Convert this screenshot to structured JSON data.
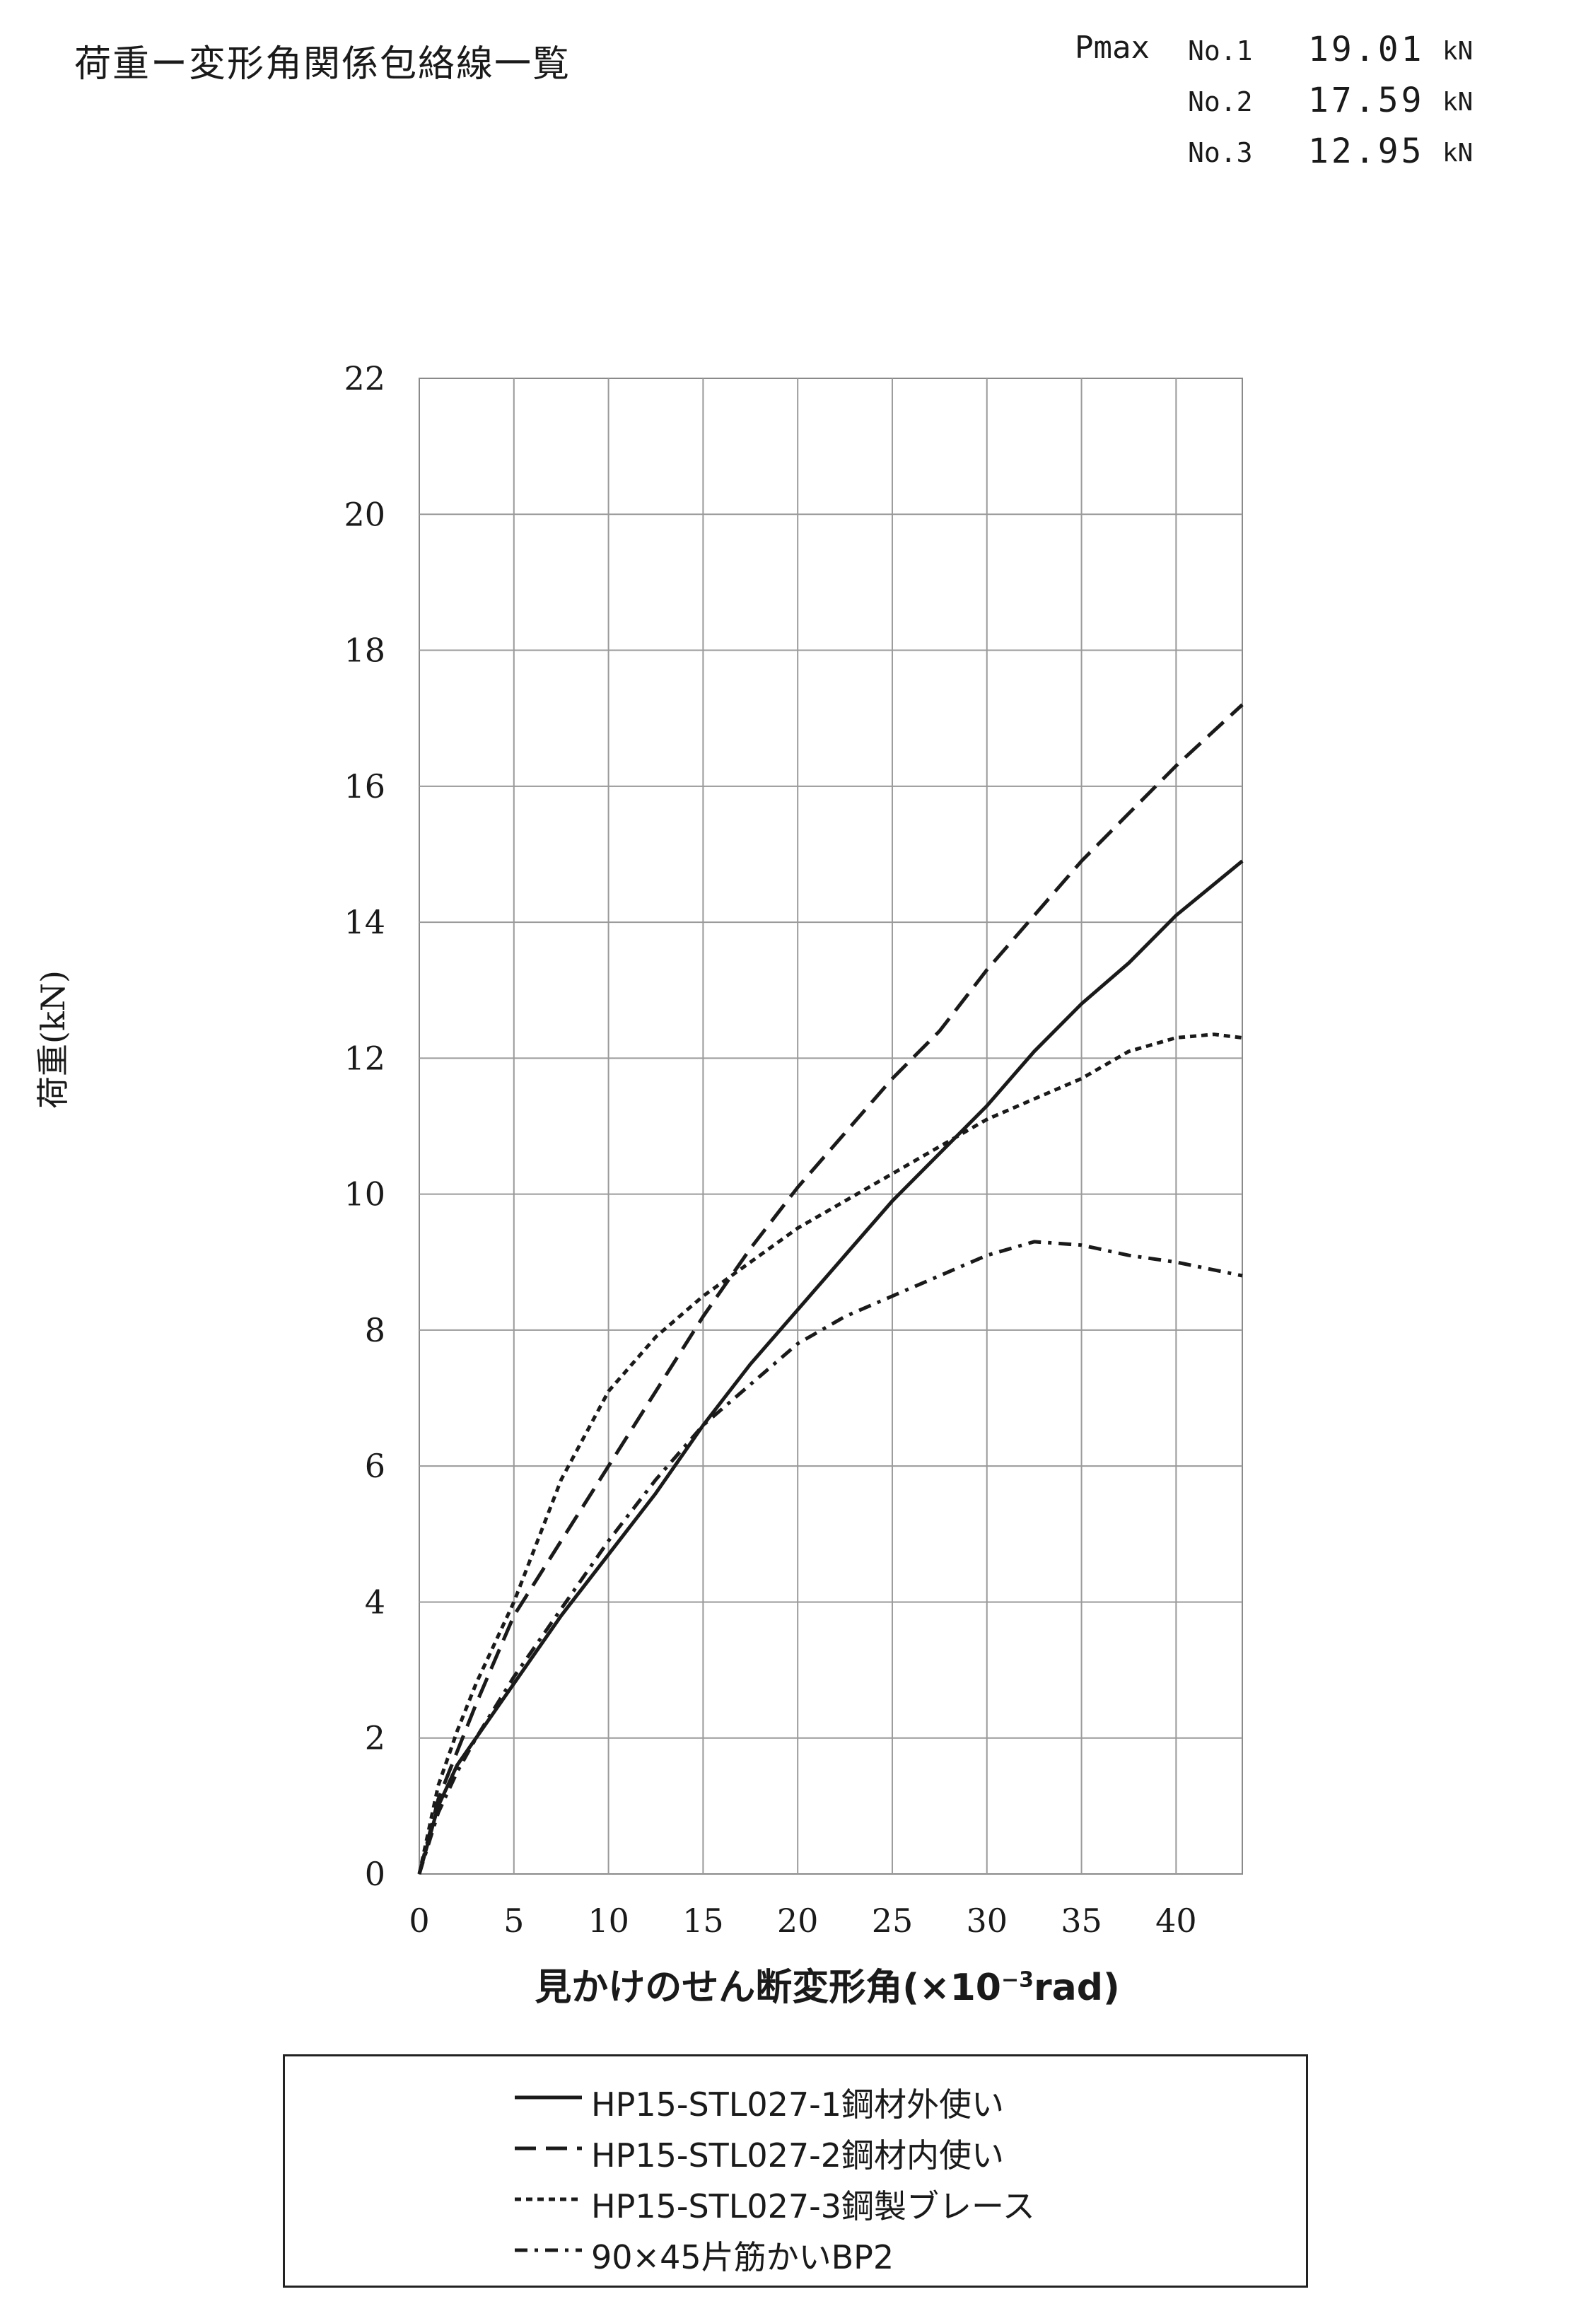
{
  "page": {
    "title": "荷重ー変形角関係包絡線一覧"
  },
  "pmax": {
    "label": "Pmax",
    "rows": [
      {
        "no": "No.1",
        "value": "19.01",
        "unit": "kN"
      },
      {
        "no": "No.2",
        "value": "17.59",
        "unit": "kN"
      },
      {
        "no": "No.3",
        "value": "12.95",
        "unit": "kN"
      }
    ]
  },
  "chart_data": {
    "type": "line",
    "ylabel": "荷重(kN)",
    "xlabel_main": "見かけのせん断変形角(×10",
    "xlabel_sup": "−3",
    "xlabel_tail": "rad)",
    "xlim": [
      0,
      43.5
    ],
    "ylim": [
      0,
      22
    ],
    "xticks": [
      0,
      5,
      10,
      15,
      20,
      25,
      30,
      35,
      40
    ],
    "yticks": [
      0,
      2,
      4,
      6,
      8,
      10,
      12,
      14,
      16,
      18,
      20,
      22
    ],
    "grid": true,
    "legend_position": "below",
    "series": [
      {
        "name": "HP15-STL027-1鋼材外使い",
        "style": "solid",
        "color": "#1a1a1a",
        "x": [
          0,
          1,
          2,
          3,
          5,
          7.5,
          10,
          12.5,
          15,
          17.5,
          20,
          22.5,
          25,
          27.5,
          30,
          32.5,
          35,
          37.5,
          40,
          43.5
        ],
        "y": [
          0,
          1.0,
          1.6,
          2.0,
          2.8,
          3.8,
          4.7,
          5.6,
          6.6,
          7.5,
          8.3,
          9.1,
          9.9,
          10.6,
          11.3,
          12.1,
          12.8,
          13.4,
          14.1,
          14.9
        ]
      },
      {
        "name": "HP15-STL027-2鋼材内使い",
        "style": "dashed",
        "color": "#1a1a1a",
        "x": [
          0,
          1,
          2,
          3,
          5,
          7.5,
          10,
          12.5,
          15,
          17.5,
          20,
          22.5,
          25,
          27.5,
          30,
          32.5,
          35,
          37.5,
          40,
          43.5
        ],
        "y": [
          0,
          1.1,
          1.8,
          2.5,
          3.8,
          4.9,
          6.0,
          7.1,
          8.2,
          9.2,
          10.1,
          10.9,
          11.7,
          12.4,
          13.3,
          14.1,
          14.9,
          15.6,
          16.3,
          17.2
        ]
      },
      {
        "name": "HP15-STL027-3鋼製ブレース",
        "style": "dotted",
        "color": "#1a1a1a",
        "x": [
          0,
          1,
          2,
          3,
          5,
          7.5,
          10,
          12.5,
          15,
          17.5,
          20,
          22.5,
          25,
          27.5,
          30,
          32.5,
          35,
          37.5,
          40,
          42,
          43.5
        ],
        "y": [
          0,
          1.3,
          2.1,
          2.8,
          4.0,
          5.8,
          7.1,
          7.9,
          8.5,
          9.0,
          9.5,
          9.9,
          10.3,
          10.7,
          11.1,
          11.4,
          11.7,
          12.1,
          12.3,
          12.35,
          12.3
        ]
      },
      {
        "name": "90×45片筋かいBP2",
        "style": "dashdot",
        "color": "#1a1a1a",
        "x": [
          0,
          1,
          2,
          3,
          5,
          7.5,
          10,
          12.5,
          15,
          17.5,
          20,
          22.5,
          25,
          27.5,
          30,
          32.5,
          35,
          37.5,
          40,
          43.5
        ],
        "y": [
          0,
          0.9,
          1.5,
          2.0,
          2.9,
          3.9,
          4.9,
          5.8,
          6.6,
          7.2,
          7.8,
          8.2,
          8.5,
          8.8,
          9.1,
          9.3,
          9.25,
          9.1,
          9.0,
          8.8
        ]
      }
    ]
  }
}
